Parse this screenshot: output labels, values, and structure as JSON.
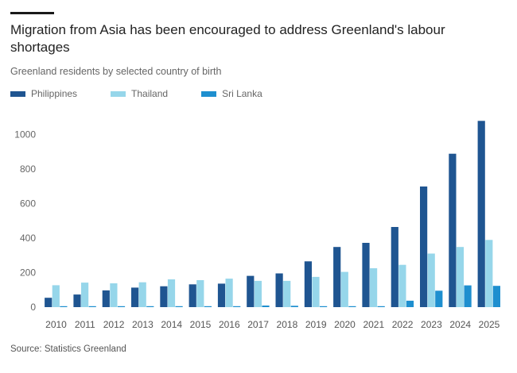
{
  "chart_data": {
    "type": "bar",
    "title": "Migration from Asia has been encouraged to address Greenland's labour shortages",
    "subtitle": "Greenland residents by selected country of birth",
    "source": "Source: Statistics Greenland",
    "xlabel": "",
    "ylabel": "",
    "ylim": [
      0,
      1100
    ],
    "yticks": [
      0,
      200,
      400,
      600,
      800,
      1000
    ],
    "grid": false,
    "legend_position": "top-left",
    "categories": [
      "2010",
      "2011",
      "2012",
      "2013",
      "2014",
      "2015",
      "2016",
      "2017",
      "2018",
      "2019",
      "2020",
      "2021",
      "2022",
      "2023",
      "2024",
      "2025"
    ],
    "series": [
      {
        "name": "Philippines",
        "color": "#1f5591",
        "values": [
          54,
          73,
          97,
          113,
          121,
          132,
          136,
          181,
          195,
          265,
          348,
          372,
          464,
          698,
          888,
          1078
        ]
      },
      {
        "name": "Thailand",
        "color": "#96d6ea",
        "values": [
          127,
          142,
          138,
          144,
          161,
          156,
          165,
          152,
          152,
          175,
          204,
          225,
          245,
          310,
          348,
          389
        ]
      },
      {
        "name": "Sri Lanka",
        "color": "#1e8fcf",
        "values": [
          5,
          5,
          5,
          5,
          4,
          5,
          5,
          9,
          8,
          3,
          3,
          3,
          37,
          95,
          126,
          123
        ]
      }
    ]
  }
}
